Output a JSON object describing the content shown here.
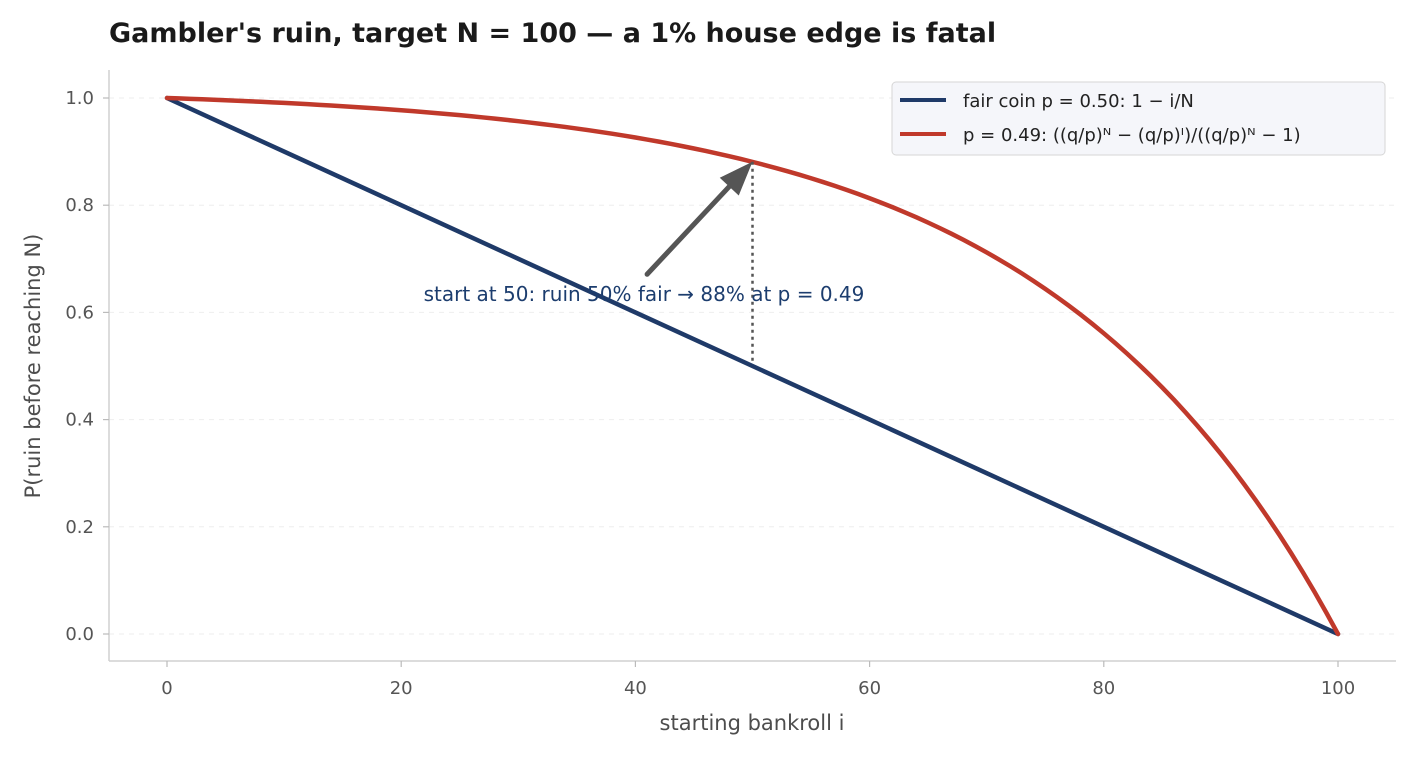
{
  "chart_data": {
    "type": "line",
    "title": "Gambler's ruin, target N = 100 — a 1% house edge is fatal",
    "xlabel": "starting bankroll i",
    "ylabel": "P(ruin before reaching N)",
    "xlim": [
      -5,
      105
    ],
    "ylim": [
      -0.05,
      1.05
    ],
    "xticks": [
      0,
      20,
      40,
      60,
      80,
      100
    ],
    "xtick_labels": [
      "0",
      "20",
      "40",
      "60",
      "80",
      "100"
    ],
    "yticks": [
      0.0,
      0.2,
      0.4,
      0.6,
      0.8,
      1.0
    ],
    "ytick_labels": [
      "0.0",
      "0.2",
      "0.4",
      "0.6",
      "0.8",
      "1.0"
    ],
    "grid": "horizontal, dashed, faint",
    "legend_position": "top-right",
    "series": [
      {
        "name": "fair coin p = 0.50: 1 − i/N",
        "color": "#1f3a68",
        "x": [
          0,
          10,
          20,
          30,
          40,
          50,
          60,
          70,
          80,
          90,
          100
        ],
        "y": [
          1.0,
          0.9,
          0.8,
          0.7,
          0.6,
          0.5,
          0.4,
          0.3,
          0.2,
          0.1,
          0.0
        ]
      },
      {
        "name": "p = 0.49: ((q/p)ᴺ − (q/p)ᴵ)/((q/p)ᴺ − 1)",
        "color": "#c0392b",
        "x": [
          0,
          10,
          20,
          30,
          40,
          50,
          60,
          70,
          80,
          90,
          100
        ],
        "y": [
          1.0,
          0.993,
          0.982,
          0.966,
          0.941,
          0.881,
          0.823,
          0.731,
          0.59,
          0.358,
          0.0
        ]
      }
    ],
    "annotation": {
      "text": "start at 50: ruin 50% fair → 88% at p = 0.49",
      "color": "#1c3d6e",
      "points_to": [
        50,
        0.881
      ],
      "text_at": [
        41,
        0.66
      ],
      "marker_line": {
        "x": 50,
        "y_from": 0.5,
        "y_to": 0.881
      }
    }
  }
}
